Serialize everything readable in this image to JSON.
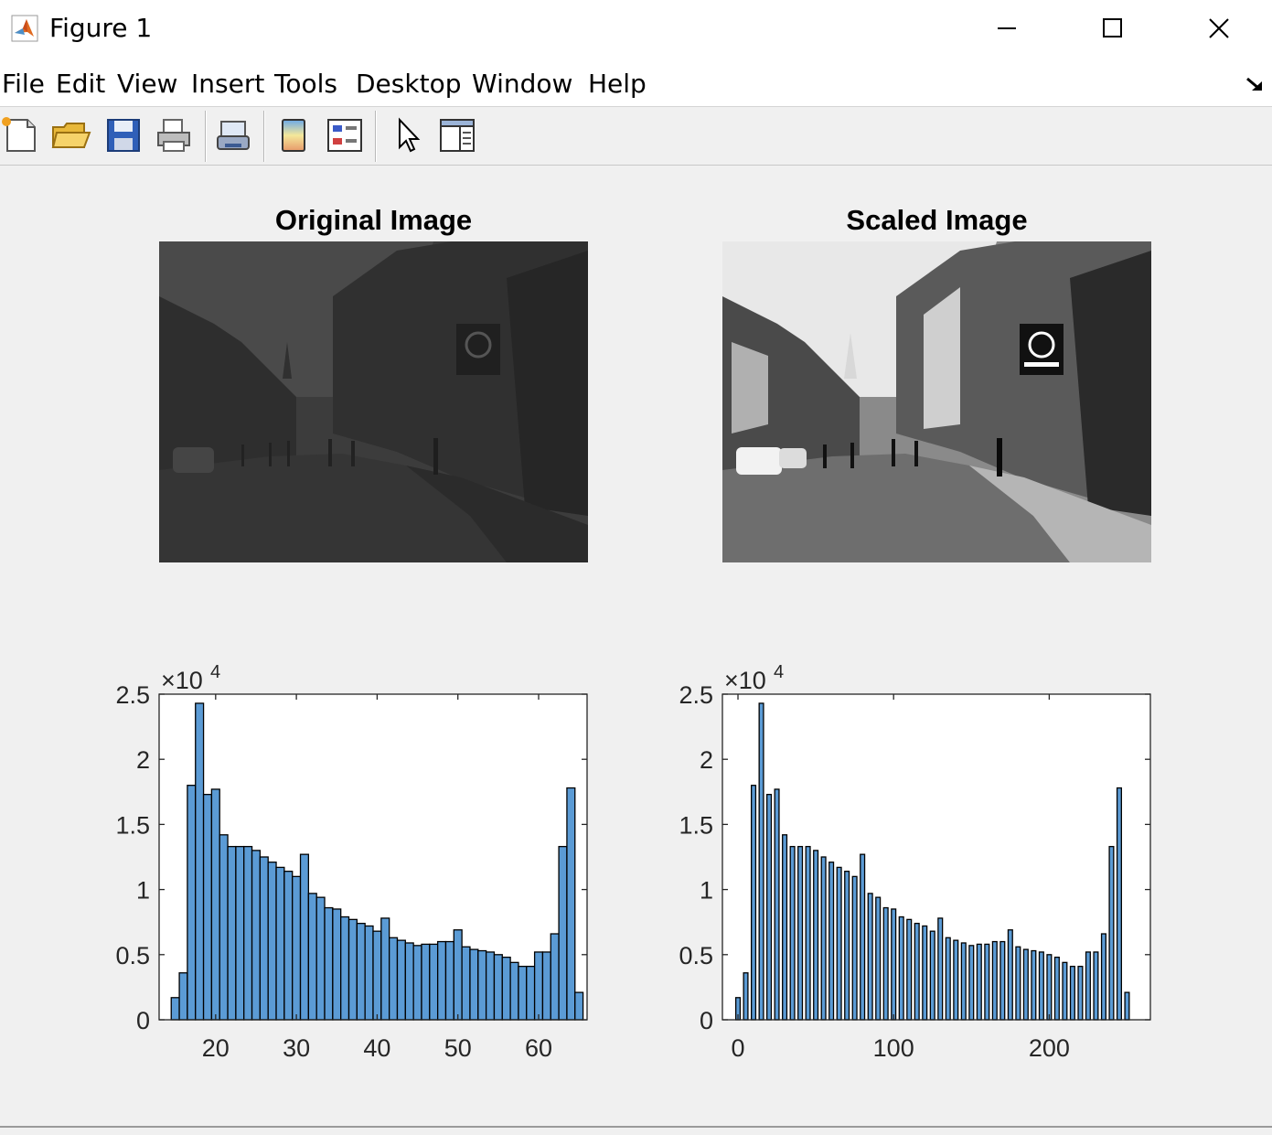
{
  "window": {
    "title": "Figure 1",
    "icon": "matlab-logo-icon"
  },
  "menu": {
    "items": [
      "File",
      "Edit",
      "View",
      "Insert",
      "Tools",
      "Desktop",
      "Window",
      "Help"
    ]
  },
  "toolbar": {
    "tools": [
      "new-figure-icon",
      "open-file-icon",
      "save-icon",
      "print-icon",
      "link-plot-icon",
      "insert-colorbar-icon",
      "insert-legend-icon",
      "edit-plot-arrow-icon",
      "property-inspector-icon"
    ]
  },
  "colors": {
    "bar_fill": "#5b9bd5",
    "bar_edge": "#000000",
    "figure_bg": "#f0f0f0"
  },
  "panels": {
    "original_title": "Original Image",
    "scaled_title": "Scaled Image"
  },
  "chart_data": [
    {
      "type": "bar",
      "id": "histogram-original",
      "title": "",
      "xlabel": "",
      "ylabel": "",
      "exponent_label": "×10",
      "exponent_power": "4",
      "xlim": [
        13,
        66
      ],
      "ylim": [
        0,
        25000
      ],
      "xticks": [
        20,
        30,
        40,
        50,
        60
      ],
      "yticks": [
        0,
        5000,
        10000,
        15000,
        20000,
        25000
      ],
      "ytick_labels": [
        "0",
        "0.5",
        "1",
        "1.5",
        "2",
        "2.5"
      ],
      "bin_width": 1,
      "x": [
        15,
        16,
        17,
        18,
        19,
        20,
        21,
        22,
        23,
        24,
        25,
        26,
        27,
        28,
        29,
        30,
        31,
        32,
        33,
        34,
        35,
        36,
        37,
        38,
        39,
        40,
        41,
        42,
        43,
        44,
        45,
        46,
        47,
        48,
        49,
        50,
        51,
        52,
        53,
        54,
        55,
        56,
        57,
        58,
        59,
        60,
        61,
        62,
        63,
        64,
        65
      ],
      "values": [
        1700,
        3600,
        18000,
        24300,
        17300,
        17700,
        14200,
        13300,
        13300,
        13300,
        13000,
        12500,
        12100,
        11700,
        11400,
        11000,
        12700,
        9700,
        9400,
        8600,
        8500,
        7900,
        7700,
        7400,
        7200,
        6800,
        7800,
        6300,
        6100,
        5900,
        5700,
        5800,
        5800,
        6000,
        6000,
        6900,
        5600,
        5400,
        5300,
        5200,
        5000,
        4800,
        4400,
        4100,
        4100,
        5200,
        5200,
        6600,
        13300,
        17800,
        2100
      ]
    },
    {
      "type": "bar",
      "id": "histogram-scaled",
      "title": "",
      "xlabel": "",
      "ylabel": "",
      "exponent_label": "×10",
      "exponent_power": "4",
      "xlim": [
        -10,
        265
      ],
      "ylim": [
        0,
        25000
      ],
      "xticks": [
        0,
        100,
        200
      ],
      "yticks": [
        0,
        5000,
        10000,
        15000,
        20000,
        25000
      ],
      "ytick_labels": [
        "0",
        "0.5",
        "1",
        "1.5",
        "2",
        "2.5"
      ],
      "bin_width": 2.8,
      "x": [
        0,
        5,
        10,
        15,
        20,
        25,
        30,
        35,
        40,
        45,
        50,
        55,
        60,
        65,
        70,
        75,
        80,
        85,
        90,
        95,
        100,
        105,
        110,
        115,
        120,
        125,
        130,
        135,
        140,
        145,
        150,
        155,
        160,
        165,
        170,
        175,
        180,
        185,
        190,
        195,
        200,
        205,
        210,
        215,
        220,
        225,
        230,
        235,
        240,
        245,
        250
      ],
      "values": [
        1700,
        3600,
        18000,
        24300,
        17300,
        17700,
        14200,
        13300,
        13300,
        13300,
        13000,
        12500,
        12100,
        11700,
        11400,
        11000,
        12700,
        9700,
        9400,
        8600,
        8500,
        7900,
        7700,
        7400,
        7200,
        6800,
        7800,
        6300,
        6100,
        5900,
        5700,
        5800,
        5800,
        6000,
        6000,
        6900,
        5600,
        5400,
        5300,
        5200,
        5000,
        4800,
        4400,
        4100,
        4100,
        5200,
        5200,
        6600,
        13300,
        17800,
        2100
      ]
    }
  ]
}
